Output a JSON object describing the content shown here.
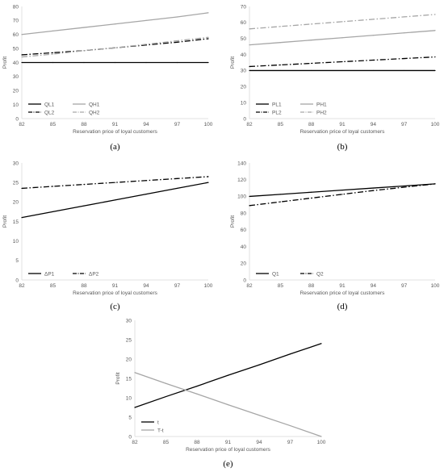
{
  "chart_data": [
    {
      "type": "line",
      "panel_label": "(a)",
      "xlabel": "Reservation price of loyal customers",
      "ylabel": "Profit",
      "x": [
        82,
        85,
        88,
        91,
        94,
        97,
        100
      ],
      "ylim": [
        0,
        80
      ],
      "yticks": [
        0,
        10,
        20,
        30,
        40,
        50,
        60,
        70,
        80
      ],
      "grid": false,
      "legend_position": "bottom-left",
      "legend_columns": 2,
      "series": [
        {
          "name": "QL1",
          "style": "solid",
          "color": "#000000",
          "values": [
            40,
            40,
            40,
            40,
            40,
            40,
            40
          ]
        },
        {
          "name": "QH1",
          "style": "solid",
          "color": "#a6a6a6",
          "values": [
            60,
            62.5,
            65,
            67.5,
            70,
            72.5,
            75.5
          ]
        },
        {
          "name": "QL2",
          "style": "dashdot",
          "color": "#000000",
          "values": [
            45.5,
            47,
            48.5,
            50.5,
            52.5,
            54.5,
            57
          ]
        },
        {
          "name": "QH2",
          "style": "dashdot",
          "color": "#a6a6a6",
          "values": [
            44,
            46,
            48.5,
            50.5,
            53,
            55.5,
            58
          ]
        }
      ]
    },
    {
      "type": "line",
      "panel_label": "(b)",
      "xlabel": "Reservation price of loyal customers",
      "ylabel": "Profit",
      "x": [
        82,
        85,
        88,
        91,
        94,
        97,
        100
      ],
      "ylim": [
        0,
        70
      ],
      "yticks": [
        0,
        10,
        20,
        30,
        40,
        50,
        60,
        70
      ],
      "grid": false,
      "legend_position": "bottom-left",
      "legend_columns": 2,
      "series": [
        {
          "name": "PL1",
          "style": "solid",
          "color": "#000000",
          "values": [
            30,
            30,
            30,
            30,
            30,
            30,
            30
          ]
        },
        {
          "name": "PH1",
          "style": "solid",
          "color": "#a6a6a6",
          "values": [
            46,
            47.5,
            49,
            50.5,
            52,
            53.5,
            55
          ]
        },
        {
          "name": "PL2",
          "style": "dashdot",
          "color": "#000000",
          "values": [
            32.5,
            33.5,
            34.5,
            35.5,
            36.5,
            37.5,
            38.5
          ]
        },
        {
          "name": "PH2",
          "style": "dashdot",
          "color": "#a6a6a6",
          "values": [
            56,
            57.5,
            59,
            60.5,
            62,
            63.5,
            65
          ]
        }
      ]
    },
    {
      "type": "line",
      "panel_label": "(c)",
      "xlabel": "Reservation price of loyal customers",
      "ylabel": "Profit",
      "x": [
        82,
        85,
        88,
        91,
        94,
        97,
        100
      ],
      "ylim": [
        0,
        30
      ],
      "yticks": [
        0,
        5,
        10,
        15,
        20,
        25,
        30
      ],
      "grid": false,
      "legend_position": "bottom-left",
      "legend_columns": 2,
      "series": [
        {
          "name": "ΔP1",
          "style": "solid",
          "color": "#000000",
          "values": [
            16,
            17.5,
            19,
            20.5,
            22,
            23.5,
            25
          ]
        },
        {
          "name": "ΔP2",
          "style": "dashdot",
          "color": "#000000",
          "values": [
            23.5,
            24,
            24.5,
            25,
            25.5,
            26,
            26.5
          ]
        }
      ]
    },
    {
      "type": "line",
      "panel_label": "(d)",
      "xlabel": "Reservation price of loyal customers",
      "ylabel": "Profit",
      "x": [
        82,
        85,
        88,
        91,
        94,
        97,
        100
      ],
      "ylim": [
        0,
        140
      ],
      "yticks": [
        0,
        20,
        40,
        60,
        80,
        100,
        120,
        140
      ],
      "grid": false,
      "legend_position": "bottom-left",
      "legend_columns": 2,
      "series": [
        {
          "name": "Q1",
          "style": "solid",
          "color": "#000000",
          "values": [
            100,
            102.5,
            105,
            107.5,
            110,
            112.5,
            115
          ]
        },
        {
          "name": "Q2",
          "style": "dashdot",
          "color": "#000000",
          "values": [
            89,
            93.5,
            98,
            102.5,
            107,
            111,
            115
          ]
        }
      ]
    },
    {
      "type": "line",
      "panel_label": "(e)",
      "xlabel": "Reservation price of loyal customers",
      "ylabel": "Profit",
      "x": [
        82,
        85,
        88,
        91,
        94,
        97,
        100
      ],
      "ylim": [
        0,
        30
      ],
      "yticks": [
        0,
        5,
        10,
        15,
        20,
        25,
        30
      ],
      "grid": false,
      "legend_position": "bottom-left",
      "legend_columns": 1,
      "series": [
        {
          "name": "t",
          "style": "solid",
          "color": "#000000",
          "values": [
            7.5,
            10.3,
            13,
            15.8,
            18.5,
            21.3,
            24
          ]
        },
        {
          "name": "T-t",
          "style": "solid",
          "color": "#a6a6a6",
          "values": [
            16.5,
            13.7,
            11,
            8.2,
            5.5,
            2.8,
            0
          ]
        }
      ]
    }
  ]
}
